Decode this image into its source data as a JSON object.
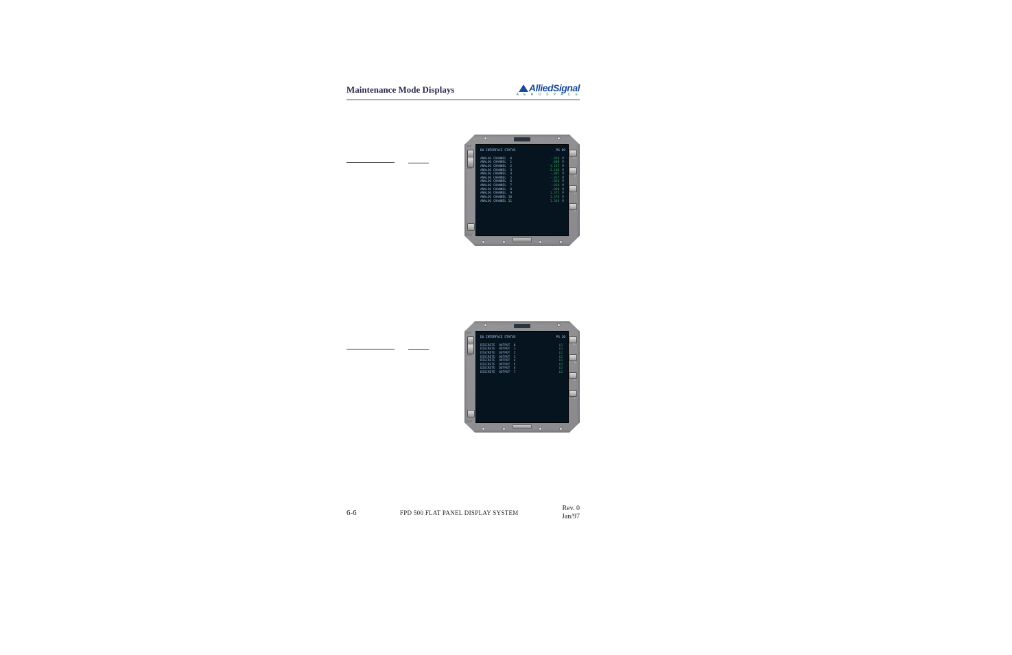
{
  "header": {
    "title": "Maintenance Mode Displays",
    "logo_main": "AlliedSignal",
    "logo_sub": "A E R O S P A C E"
  },
  "panel1": {
    "screen_title": "DU INTERFACE STATUS",
    "page_label": "PG 09",
    "rows": [
      {
        "label": "ANALOG CHANNEL  0",
        "value": "-.020",
        "unit": "V"
      },
      {
        "label": "ANALOG CHANNEL  1",
        "value": ".000",
        "unit": "V"
      },
      {
        "label": "ANALOG CHANNEL  2",
        "value": "-1.137",
        "unit": "V"
      },
      {
        "label": "ANALOG CHANNEL  3",
        "value": "-1.108",
        "unit": "V"
      },
      {
        "label": "ANALOG CHANNEL  4",
        "value": "-.007",
        "unit": "V"
      },
      {
        "label": "ANALOG CHANNEL  5",
        "value": "-.017",
        "unit": "V"
      },
      {
        "label": "ANALOG CHANNEL  6",
        "value": ".010",
        "unit": "V"
      },
      {
        "label": "ANALOG CHANNEL  7",
        "value": "-.020",
        "unit": "V"
      },
      {
        "label": "ANALOG CHANNEL  8",
        "value": ".000",
        "unit": "V"
      },
      {
        "label": "ANALOG CHANNEL  9",
        "value": "1.372",
        "unit": "V"
      },
      {
        "label": "ANALOG CHANNEL 10",
        "value": "1.370",
        "unit": "V"
      },
      {
        "label": "ANALOG CHANNEL 11",
        "value": "1.369",
        "unit": "V"
      }
    ]
  },
  "panel2": {
    "screen_title": "DU INTERFACE STATUS",
    "page_label": "PG 10",
    "rows": [
      {
        "label": "DISCRETE  OUTPUT  0",
        "value": "LO"
      },
      {
        "label": "DISCRETE  OUTPUT  1",
        "value": "LO"
      },
      {
        "label": "DISCRETE  OUTPUT  2",
        "value": "LO"
      },
      {
        "label": "DISCRETE  OUTPUT  3",
        "value": "LO"
      },
      {
        "label": "DISCRETE  OUTPUT  4",
        "value": "LO"
      },
      {
        "label": "DISCRETE  OUTPUT  5",
        "value": "LO"
      },
      {
        "label": "DISCRETE  OUTPUT  6",
        "value": "LO"
      },
      {
        "label": "DISCRETE  OUTPUT  7",
        "value": "LO"
      }
    ]
  },
  "bezel": {
    "rocker_top": "BRT",
    "rocker_bot": "DIM",
    "test": "TEST",
    "r1": "PG",
    "r2": "M",
    "r3": "D",
    "r4": "T"
  },
  "footer": {
    "left": "6-6",
    "center": "FPD 500 FLAT PANEL DISPLAY SYSTEM",
    "right_rev": "Rev. 0",
    "right_date": "Jan/97"
  }
}
